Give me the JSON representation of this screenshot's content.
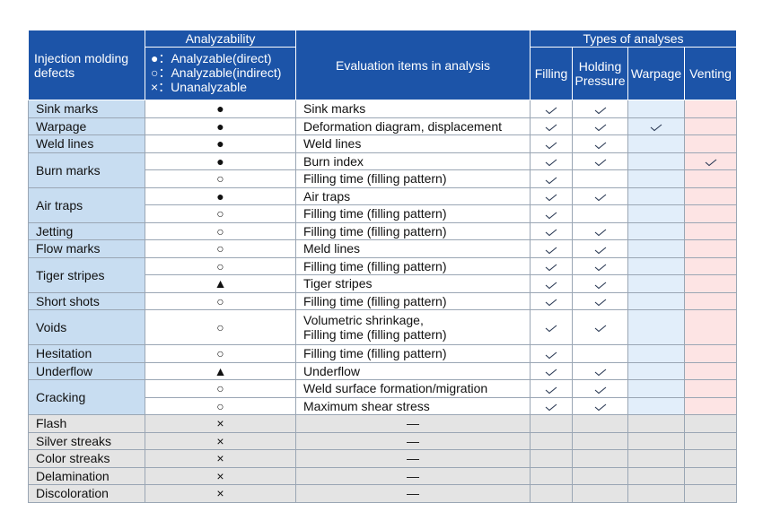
{
  "header": {
    "defects": "Injection molding defects",
    "analyzability": "Analyzability",
    "legend": [
      "●：Analyzable(direct)",
      "○：Analyzable(indirect)",
      "×：Unanalyzable"
    ],
    "evaluation": "Evaluation items in analysis",
    "types": "Types of analyses",
    "type_columns": [
      "Filling",
      "Holding Pressure",
      "Warpage",
      "Venting"
    ]
  },
  "rows": [
    {
      "defect": "Sink marks",
      "items": [
        {
          "symbol": "●",
          "evaluation": "Sink marks",
          "checks": [
            true,
            true,
            false,
            false
          ]
        }
      ]
    },
    {
      "defect": "Warpage",
      "items": [
        {
          "symbol": "●",
          "evaluation": "Deformation diagram, displacement",
          "checks": [
            true,
            true,
            true,
            false
          ]
        }
      ]
    },
    {
      "defect": "Weld lines",
      "items": [
        {
          "symbol": "●",
          "evaluation": "Weld lines",
          "checks": [
            true,
            true,
            false,
            false
          ]
        }
      ]
    },
    {
      "defect": "Burn marks",
      "items": [
        {
          "symbol": "●",
          "evaluation": "Burn index",
          "checks": [
            true,
            true,
            false,
            true
          ]
        },
        {
          "symbol": "○",
          "evaluation": "Filling time (filling pattern)",
          "checks": [
            true,
            false,
            false,
            false
          ]
        }
      ]
    },
    {
      "defect": "Air traps",
      "items": [
        {
          "symbol": "●",
          "evaluation": "Air traps",
          "checks": [
            true,
            true,
            false,
            false
          ]
        },
        {
          "symbol": "○",
          "evaluation": "Filling time (filling pattern)",
          "checks": [
            true,
            false,
            false,
            false
          ]
        }
      ]
    },
    {
      "defect": "Jetting",
      "items": [
        {
          "symbol": "○",
          "evaluation": "Filling time (filling pattern)",
          "checks": [
            true,
            true,
            false,
            false
          ]
        }
      ]
    },
    {
      "defect": "Flow marks",
      "items": [
        {
          "symbol": "○",
          "evaluation": "Meld lines",
          "checks": [
            true,
            true,
            false,
            false
          ]
        }
      ]
    },
    {
      "defect": "Tiger stripes",
      "items": [
        {
          "symbol": "○",
          "evaluation": "Filling time (filling pattern)",
          "checks": [
            true,
            true,
            false,
            false
          ]
        },
        {
          "symbol": "▲",
          "evaluation": "Tiger stripes",
          "checks": [
            true,
            true,
            false,
            false
          ]
        }
      ]
    },
    {
      "defect": "Short shots",
      "items": [
        {
          "symbol": "○",
          "evaluation": "Filling time (filling pattern)",
          "checks": [
            true,
            true,
            false,
            false
          ]
        }
      ]
    },
    {
      "defect": "Voids",
      "items": [
        {
          "symbol": "○",
          "evaluation": "Volumetric shrinkage,\nFilling time (filling pattern)",
          "checks": [
            true,
            true,
            false,
            false
          ]
        }
      ]
    },
    {
      "defect": "Hesitation",
      "items": [
        {
          "symbol": "○",
          "evaluation": "Filling time (filling pattern)",
          "checks": [
            true,
            false,
            false,
            false
          ]
        }
      ]
    },
    {
      "defect": "Underflow",
      "items": [
        {
          "symbol": "▲",
          "evaluation": "Underflow",
          "checks": [
            true,
            true,
            false,
            false
          ]
        }
      ]
    },
    {
      "defect": "Cracking",
      "items": [
        {
          "symbol": "○",
          "evaluation": "Weld surface formation/migration",
          "checks": [
            true,
            true,
            false,
            false
          ]
        },
        {
          "symbol": "○",
          "evaluation": "Maximum shear stress",
          "checks": [
            true,
            true,
            false,
            false
          ]
        }
      ]
    },
    {
      "defect": "Flash",
      "items": [
        {
          "symbol": "×",
          "evaluation": "—",
          "checks": [
            false,
            false,
            false,
            false
          ]
        }
      ]
    },
    {
      "defect": "Silver streaks",
      "items": [
        {
          "symbol": "×",
          "evaluation": "—",
          "checks": [
            false,
            false,
            false,
            false
          ]
        }
      ]
    },
    {
      "defect": "Color streaks",
      "items": [
        {
          "symbol": "×",
          "evaluation": "—",
          "checks": [
            false,
            false,
            false,
            false
          ]
        }
      ]
    },
    {
      "defect": "Delamination",
      "items": [
        {
          "symbol": "×",
          "evaluation": "—",
          "checks": [
            false,
            false,
            false,
            false
          ]
        }
      ]
    },
    {
      "defect": "Discoloration",
      "items": [
        {
          "symbol": "×",
          "evaluation": "—",
          "checks": [
            false,
            false,
            false,
            false
          ]
        }
      ]
    }
  ]
}
